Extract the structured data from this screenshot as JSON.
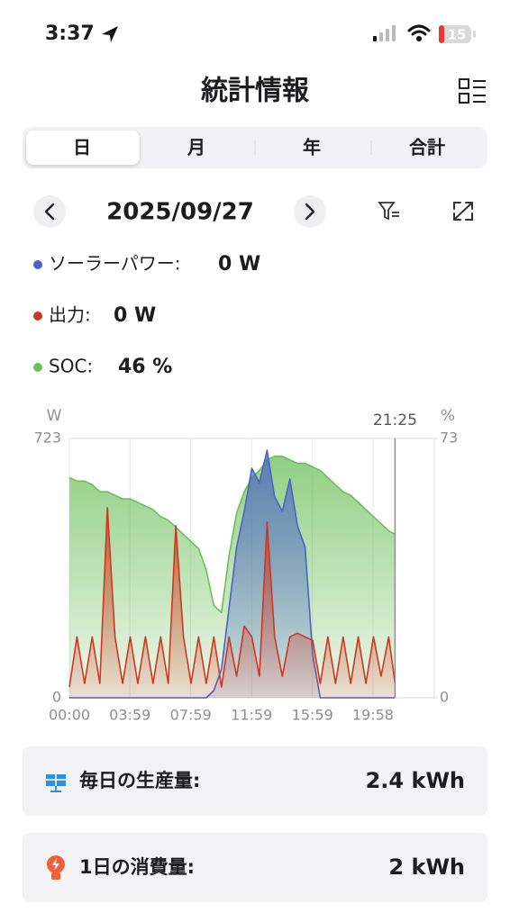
{
  "status_bar": {
    "time": "3:37",
    "battery": "15"
  },
  "header": {
    "title": "統計情報"
  },
  "tabs": [
    "日",
    "月",
    "年",
    "合計"
  ],
  "date": "2025/09/27",
  "readouts": [
    {
      "label": "ソーラーパワー:",
      "value": "0 W"
    },
    {
      "label": "出力:",
      "value": "0 W"
    },
    {
      "label": "SOC:",
      "value": "46 %"
    }
  ],
  "chart_data": {
    "type": "line",
    "y_label": "W",
    "y2_label": "%",
    "cursor": {
      "value": 1285,
      "label": "21:25"
    },
    "x": [
      0,
      30,
      60,
      90,
      120,
      150,
      180,
      210,
      240,
      270,
      300,
      330,
      360,
      390,
      420,
      450,
      480,
      510,
      540,
      570,
      600,
      630,
      660,
      690,
      720,
      750,
      780,
      810,
      840,
      870,
      900,
      930,
      960,
      990,
      1020,
      1050,
      1080,
      1110,
      1140,
      1170,
      1200,
      1230,
      1260,
      1285
    ],
    "xlim": [
      0,
      1440
    ],
    "xticks": [
      {
        "value": 0,
        "label": "00:00"
      },
      {
        "value": 239,
        "label": "03:59"
      },
      {
        "value": 479,
        "label": "07:59"
      },
      {
        "value": 719,
        "label": "11:59"
      },
      {
        "value": 959,
        "label": "15:59"
      },
      {
        "value": 1198,
        "label": "19:58"
      }
    ],
    "ylim": [
      0,
      723
    ],
    "yticks": [
      0,
      723
    ],
    "y2lim": [
      0,
      73
    ],
    "y2ticks": [
      0,
      73
    ],
    "grid": true,
    "series": [
      {
        "color": "#6cbf5a",
        "axis": "y2",
        "values": [
          62,
          61,
          61,
          60,
          58,
          58,
          57,
          56,
          56,
          55,
          54,
          53,
          51,
          50,
          48,
          46,
          44,
          42,
          36,
          26,
          24,
          40,
          52,
          58,
          62,
          64,
          67,
          68,
          68,
          67,
          66,
          66,
          65,
          64,
          62,
          60,
          58,
          57,
          55,
          53,
          51,
          49,
          47,
          46
        ]
      },
      {
        "color": "#4a63c8",
        "values": [
          0,
          0,
          0,
          0,
          0,
          0,
          0,
          0,
          0,
          0,
          0,
          0,
          0,
          0,
          0,
          0,
          0,
          0,
          0,
          20,
          80,
          250,
          420,
          520,
          640,
          600,
          690,
          560,
          520,
          610,
          480,
          420,
          120,
          0,
          0,
          0,
          0,
          0,
          0,
          0,
          0,
          0,
          0,
          0
        ]
      },
      {
        "color": "#d0371f",
        "values": [
          30,
          170,
          40,
          170,
          40,
          530,
          170,
          40,
          170,
          40,
          170,
          40,
          170,
          40,
          480,
          170,
          40,
          170,
          40,
          170,
          30,
          170,
          60,
          200,
          170,
          60,
          490,
          170,
          60,
          170,
          180,
          170,
          160,
          40,
          170,
          40,
          170,
          40,
          170,
          40,
          170,
          60,
          170,
          40
        ]
      }
    ]
  },
  "summary": [
    {
      "label": "毎日の生産量:",
      "value": "2.4 kWh"
    },
    {
      "label": "1日の消費量:",
      "value": "2 kWh"
    }
  ]
}
